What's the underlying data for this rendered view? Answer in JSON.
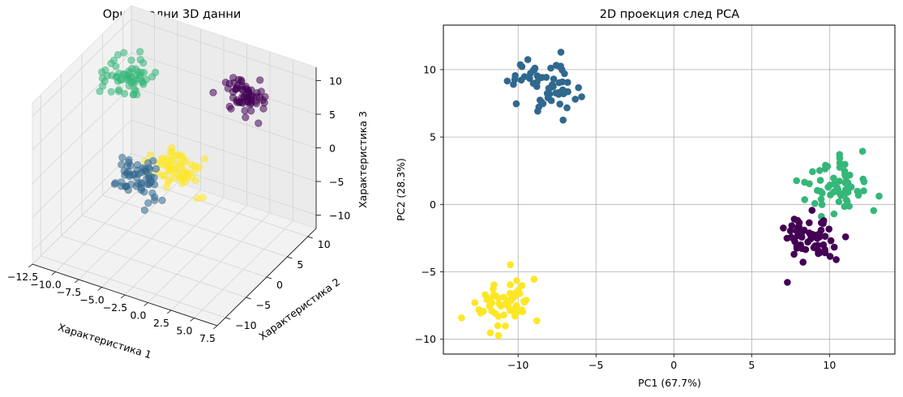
{
  "chart_data": [
    {
      "type": "scatter3d",
      "title": "Оригинални 3D данни",
      "xlabel": "Характеристика 1",
      "ylabel": "Характеристика 2",
      "zlabel": "Характеристика 3",
      "xlim": [
        -12.5,
        7.5
      ],
      "ylim": [
        -12,
        12
      ],
      "zlim": [
        -12,
        12
      ],
      "xticks": [
        "−12.5",
        "−10.0",
        "−7.5",
        "−5.0",
        "−2.5",
        "0.0",
        "2.5",
        "5.0",
        "7.5"
      ],
      "yticks": [
        "−10",
        "−5",
        "0",
        "5",
        "10"
      ],
      "zticks": [
        "−10",
        "−5",
        "0",
        "5",
        "10"
      ],
      "grid": true,
      "colors": [
        "#440154",
        "#31688e",
        "#35b779",
        "#fde725"
      ],
      "clusters": [
        {
          "center": [
            1.5,
            8.0,
            7.5
          ],
          "spread": [
            1.2,
            1.2,
            1.2
          ],
          "count": 60,
          "color": "#440154"
        },
        {
          "center": [
            -2.5,
            -9.0,
            3.0
          ],
          "spread": [
            1.2,
            1.2,
            1.2
          ],
          "count": 60,
          "color": "#31688e"
        },
        {
          "center": [
            -9.0,
            3.0,
            8.5
          ],
          "spread": [
            1.2,
            1.2,
            1.2
          ],
          "count": 60,
          "color": "#35b779"
        },
        {
          "center": [
            -3.5,
            3.0,
            -3.0
          ],
          "spread": [
            1.2,
            1.2,
            1.2
          ],
          "count": 60,
          "color": "#fde725"
        }
      ]
    },
    {
      "type": "scatter",
      "title": "2D проекция след PCA",
      "xlabel": "PC1 (67.7%)",
      "ylabel": "PC2 (28.3%)",
      "xlim": [
        -14.8,
        14.2
      ],
      "ylim": [
        -11.1,
        13.3
      ],
      "xticks": [
        {
          "value": -10,
          "label": "−10"
        },
        {
          "value": -5,
          "label": "−5"
        },
        {
          "value": 0,
          "label": "0"
        },
        {
          "value": 5,
          "label": "5"
        },
        {
          "value": 10,
          "label": "10"
        }
      ],
      "yticks": [
        {
          "value": -10,
          "label": "−10"
        },
        {
          "value": -5,
          "label": "−5"
        },
        {
          "value": 0,
          "label": "0"
        },
        {
          "value": 5,
          "label": "5"
        },
        {
          "value": 10,
          "label": "10"
        }
      ],
      "grid": true,
      "clusters": [
        {
          "center": [
            -8.2,
            9.0
          ],
          "spread": [
            1.1,
            1.1
          ],
          "count": 60,
          "color": "#31688e"
        },
        {
          "center": [
            10.3,
            1.3
          ],
          "spread": [
            1.1,
            1.1
          ],
          "count": 60,
          "color": "#35b779"
        },
        {
          "center": [
            8.8,
            -2.3
          ],
          "spread": [
            1.0,
            1.0
          ],
          "count": 60,
          "color": "#440154"
        },
        {
          "center": [
            -10.9,
            -7.4
          ],
          "spread": [
            1.0,
            1.0
          ],
          "count": 60,
          "color": "#fde725"
        }
      ]
    }
  ]
}
